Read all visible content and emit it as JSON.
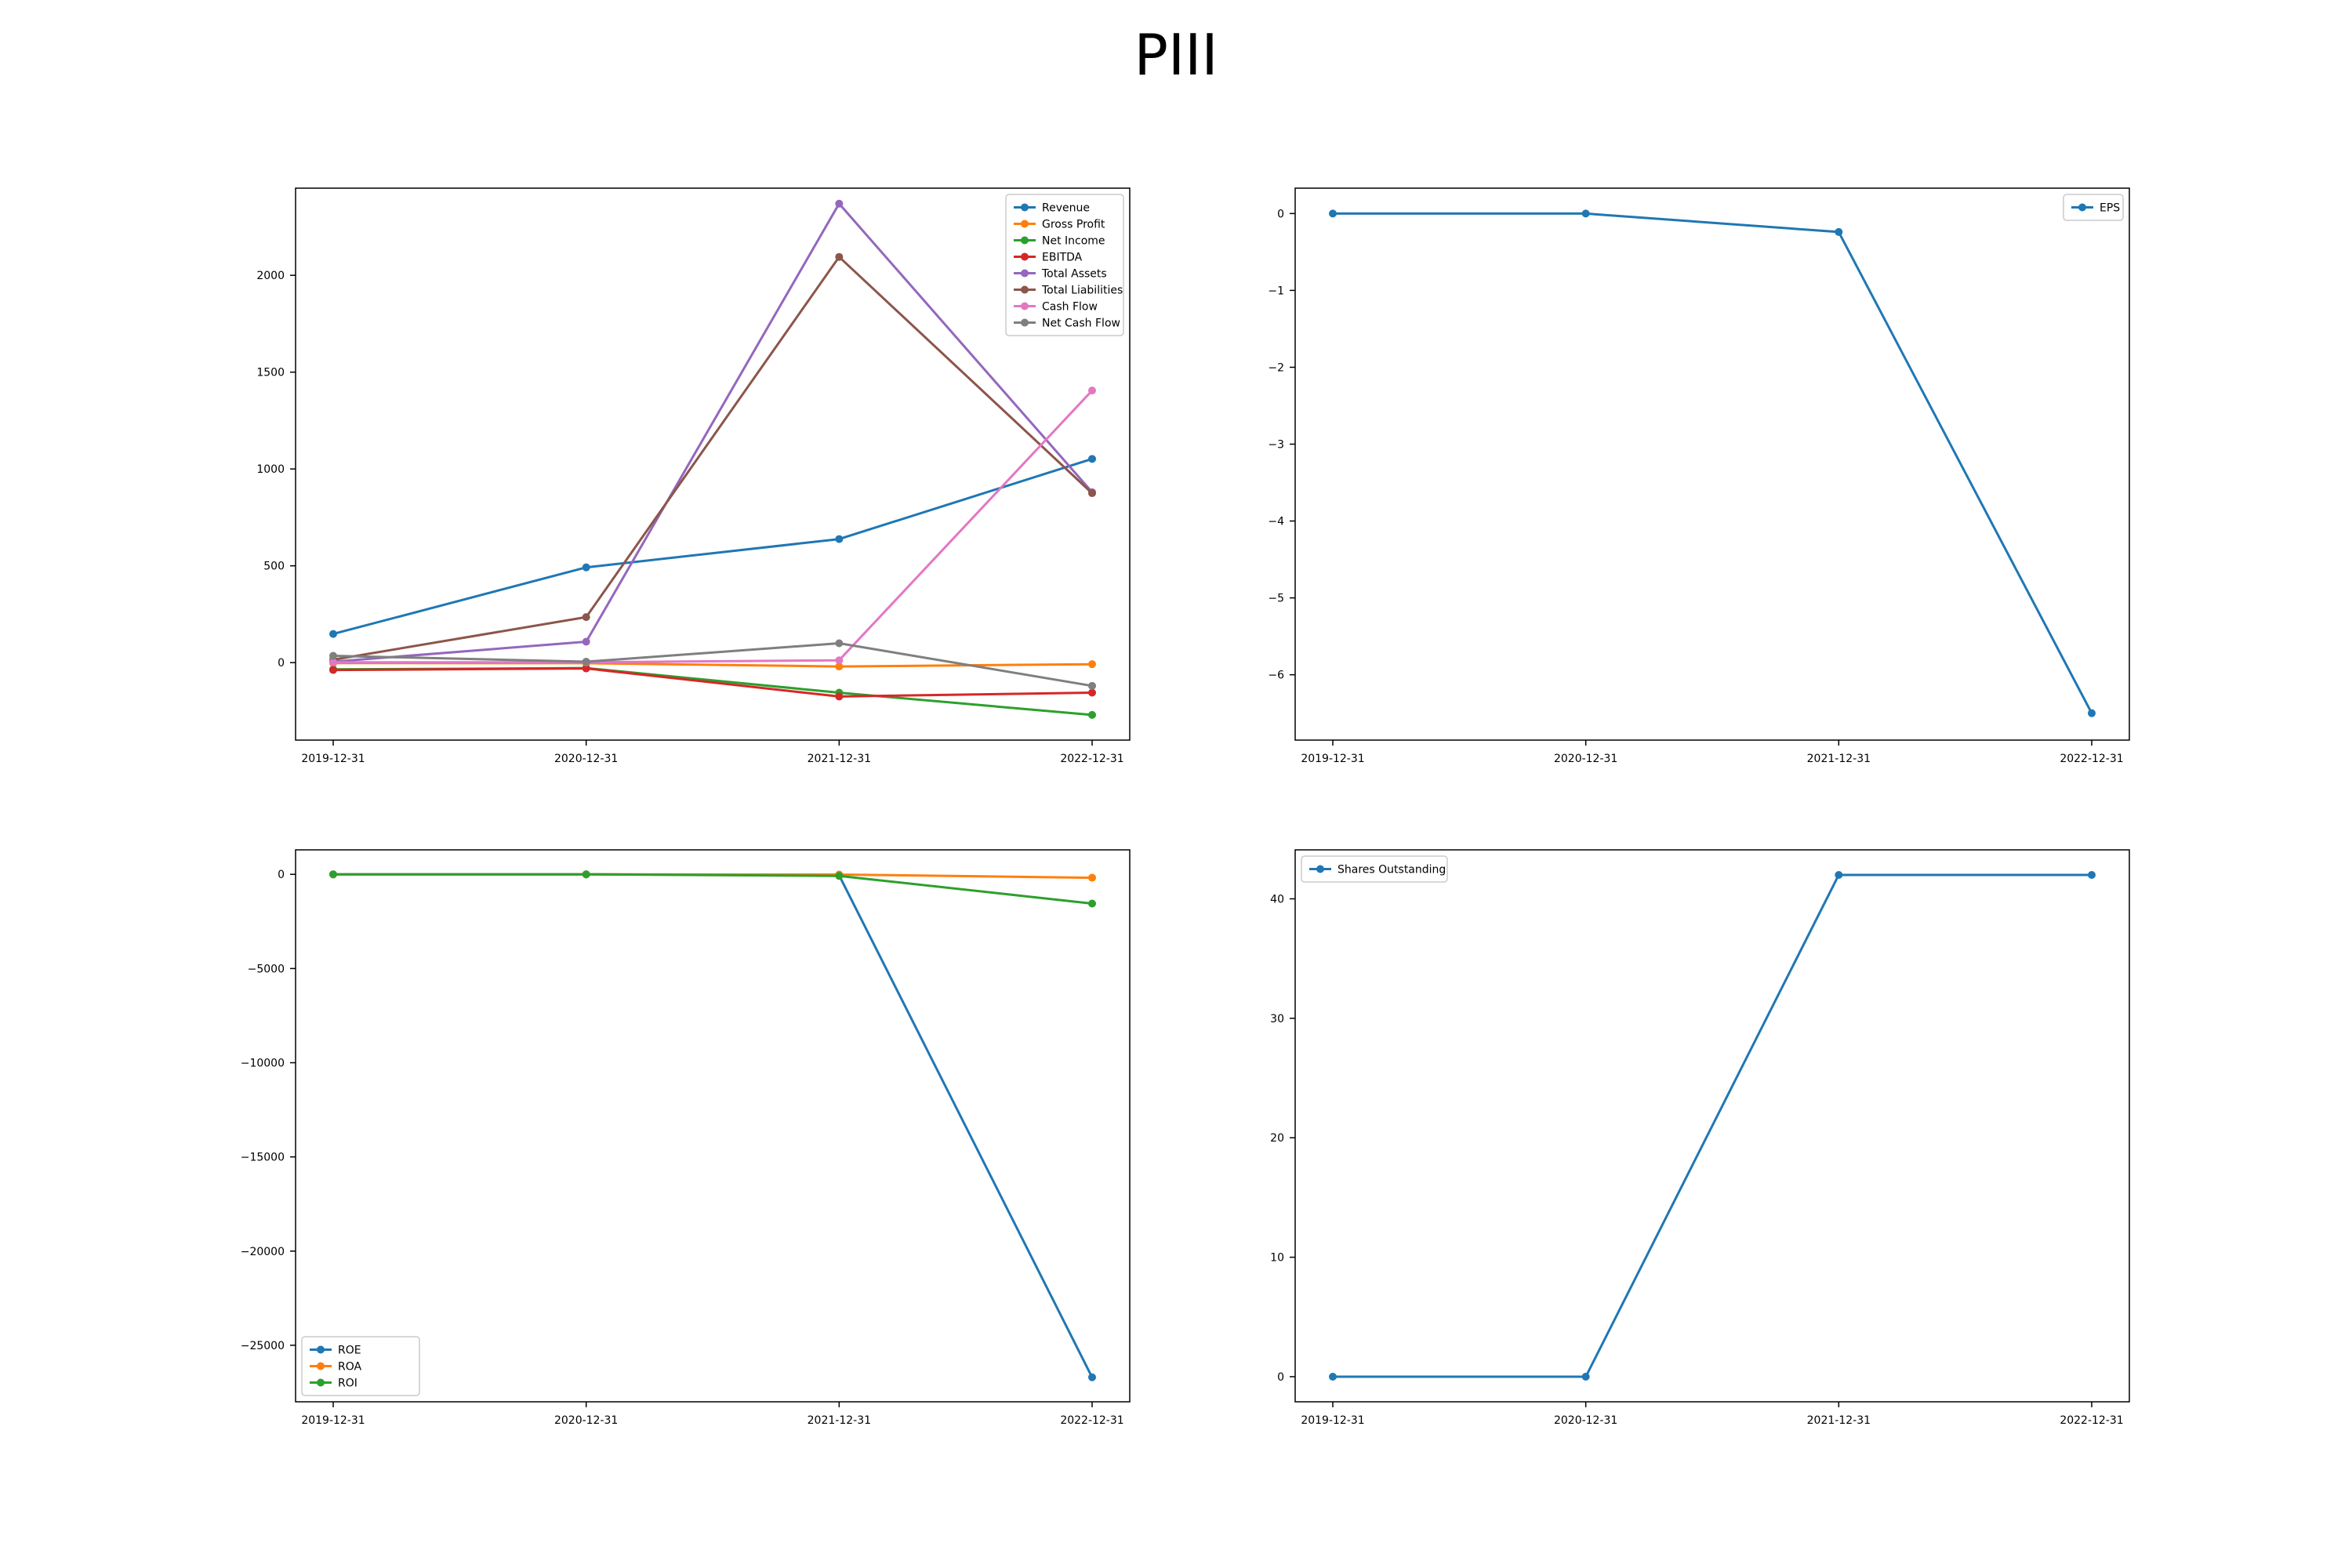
{
  "title": "PIII",
  "colors": {
    "blue": "#1f77b4",
    "orange": "#ff7f0e",
    "green": "#2ca02c",
    "red": "#d62728",
    "purple": "#9467bd",
    "brown": "#8c564b",
    "pink": "#e377c2",
    "gray": "#7f7f7f"
  },
  "chart_data": [
    {
      "type": "line",
      "x": [
        "2019-12-31",
        "2020-12-31",
        "2021-12-31",
        "2022-12-31"
      ],
      "ylim": [
        -400,
        2450
      ],
      "yticks": [
        0,
        500,
        1000,
        1500,
        2000
      ],
      "grid": false,
      "legend": "top-right",
      "series": [
        {
          "name": "Revenue",
          "color": "#1f77b4",
          "values": [
            148,
            492,
            638,
            1052
          ]
        },
        {
          "name": "Gross Profit",
          "color": "#ff7f0e",
          "values": [
            -2,
            -3,
            -20,
            -8
          ]
        },
        {
          "name": "Net Income",
          "color": "#2ca02c",
          "values": [
            -35,
            -28,
            -155,
            -270
          ]
        },
        {
          "name": "EBITDA",
          "color": "#d62728",
          "values": [
            -38,
            -30,
            -175,
            -155
          ]
        },
        {
          "name": "Total Assets",
          "color": "#9467bd",
          "values": [
            5,
            108,
            2370,
            880
          ]
        },
        {
          "name": "Total Liabilities",
          "color": "#8c564b",
          "values": [
            15,
            235,
            2095,
            875
          ]
        },
        {
          "name": "Cash Flow",
          "color": "#e377c2",
          "values": [
            2,
            2,
            12,
            1405
          ]
        },
        {
          "name": "Net Cash Flow",
          "color": "#7f7f7f",
          "values": [
            35,
            5,
            100,
            -120
          ]
        }
      ]
    },
    {
      "type": "line",
      "x": [
        "2019-12-31",
        "2020-12-31",
        "2021-12-31",
        "2022-12-31"
      ],
      "ylim": [
        -6.85,
        0.33
      ],
      "yticks": [
        0,
        -1,
        -2,
        -3,
        -4,
        -5,
        -6
      ],
      "grid": false,
      "legend": "top-right",
      "series": [
        {
          "name": "EPS",
          "color": "#1f77b4",
          "values": [
            0,
            0,
            -0.24,
            -6.5
          ]
        }
      ]
    },
    {
      "type": "line",
      "x": [
        "2019-12-31",
        "2020-12-31",
        "2021-12-31",
        "2022-12-31"
      ],
      "ylim": [
        -28000,
        1300
      ],
      "yticks": [
        0,
        -5000,
        -10000,
        -15000,
        -20000,
        -25000
      ],
      "grid": false,
      "legend": "bottom-left",
      "series": [
        {
          "name": "ROE",
          "color": "#1f77b4",
          "values": [
            0,
            0,
            -50,
            -26700
          ]
        },
        {
          "name": "ROA",
          "color": "#ff7f0e",
          "values": [
            0,
            0,
            -10,
            -180
          ]
        },
        {
          "name": "ROI",
          "color": "#2ca02c",
          "values": [
            0,
            0,
            -80,
            -1550
          ]
        }
      ]
    },
    {
      "type": "line",
      "x": [
        "2019-12-31",
        "2020-12-31",
        "2021-12-31",
        "2022-12-31"
      ],
      "ylim": [
        -2.1,
        44.1
      ],
      "yticks": [
        0,
        10,
        20,
        30,
        40
      ],
      "grid": false,
      "legend": "top-left",
      "series": [
        {
          "name": "Shares Outstanding",
          "color": "#1f77b4",
          "values": [
            0,
            0,
            42,
            42
          ]
        }
      ]
    }
  ]
}
